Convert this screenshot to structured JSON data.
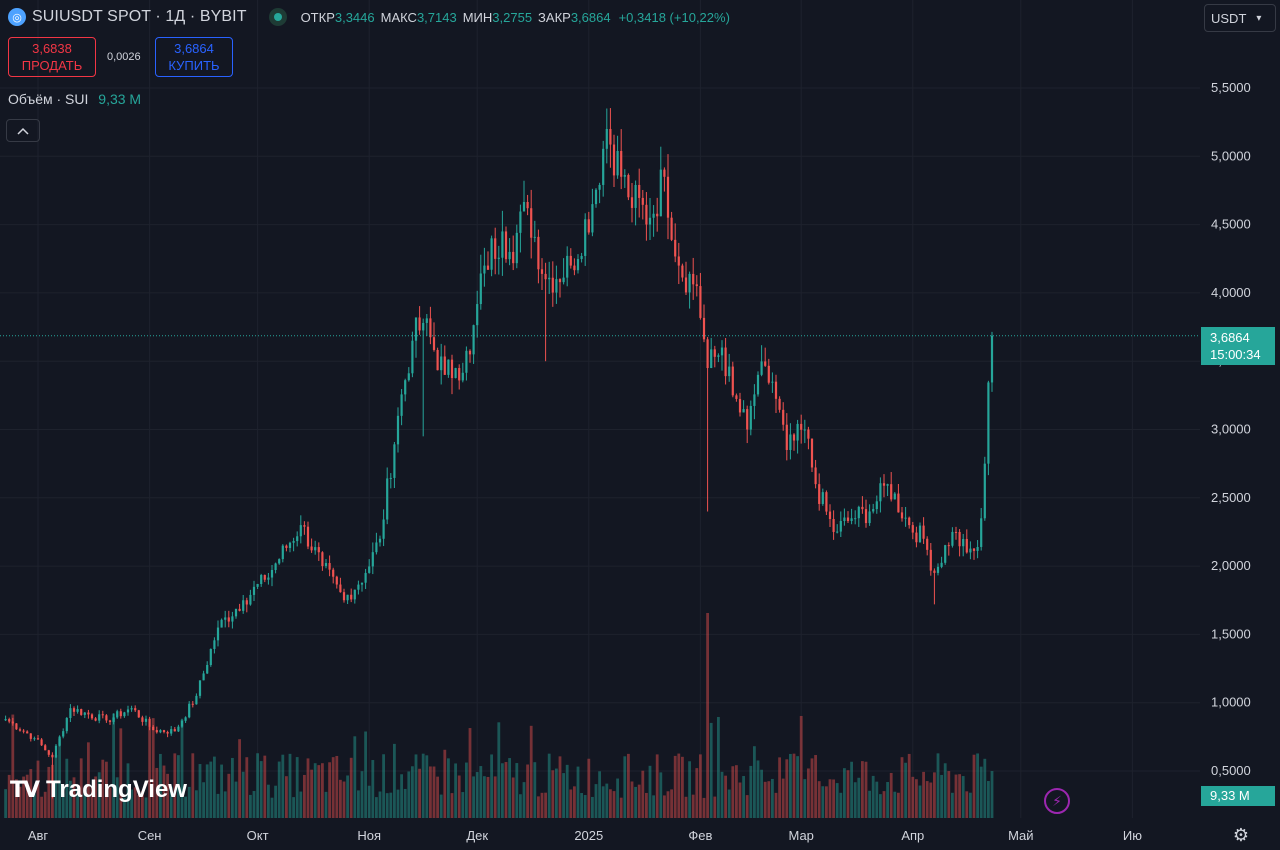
{
  "header": {
    "symbol_title": "SUIUSDT SPOT · 1Д · BYBIT",
    "ohlc": {
      "open_label": "ОТКР",
      "open": "3,3446",
      "high_label": "МАКС",
      "high": "3,7143",
      "low_label": "МИН",
      "low": "3,2755",
      "close_label": "ЗАКР",
      "close": "3,6864",
      "change": "+0,3418 (+10,22%)"
    },
    "sell": {
      "price": "3,6838",
      "label": "ПРОДАТЬ"
    },
    "spread": "0,0026",
    "buy": {
      "price": "3,6864",
      "label": "КУПИТЬ"
    },
    "volume_legend": {
      "label": "Объём · SUI",
      "value": "9,33 M"
    },
    "collapse_icon": "chevron-up-icon"
  },
  "currency_select": {
    "value": "USDT",
    "icon": "chevron-down-icon"
  },
  "price_label": {
    "price": "3,6864",
    "countdown": "15:00:34"
  },
  "volume_label": "9,33 M",
  "logo_text": "TradingView",
  "colors": {
    "background": "#131722",
    "up": "#26a69a",
    "down": "#ef5350",
    "grid": "#1e222d",
    "text": "#d1d4dc",
    "price_line": "#26a69a"
  },
  "chart_data": {
    "type": "candlestick",
    "title": "SUIUSDT SPOT · 1Д · BYBIT",
    "ylim": [
      0.3,
      5.7
    ],
    "y_ticks": [
      "5,5000",
      "5,0000",
      "4,5000",
      "4,0000",
      "3,5000",
      "3,0000",
      "2,5000",
      "2,0000",
      "1,5000",
      "1,0000",
      "0,5000"
    ],
    "y_tick_values": [
      5.5,
      5.0,
      4.5,
      4.0,
      3.5,
      3.0,
      2.5,
      2.0,
      1.5,
      1.0,
      0.5
    ],
    "x_ticks": [
      "Авг",
      "Сен",
      "Окт",
      "Ноя",
      "Дек",
      "2025",
      "Фев",
      "Мар",
      "Апр",
      "Май",
      "Ию"
    ],
    "x_tick_dates": [
      "2024-08-01",
      "2024-09-01",
      "2024-10-01",
      "2024-11-01",
      "2024-12-01",
      "2025-01-01",
      "2025-02-01",
      "2025-03-01",
      "2025-04-01",
      "2025-05-01",
      "2025-06-01"
    ],
    "series_dates": [
      "2024-07-23",
      "2025-04-23"
    ],
    "key_points": [
      {
        "date": "2024-07-23",
        "close": 0.88
      },
      {
        "date": "2024-07-31",
        "close": 0.74
      },
      {
        "date": "2024-08-05",
        "close": 0.6
      },
      {
        "date": "2024-08-10",
        "close": 0.96
      },
      {
        "date": "2024-08-20",
        "close": 0.87
      },
      {
        "date": "2024-08-27",
        "close": 0.96
      },
      {
        "date": "2024-09-02",
        "close": 0.8
      },
      {
        "date": "2024-09-08",
        "close": 0.79
      },
      {
        "date": "2024-09-14",
        "close": 1.05
      },
      {
        "date": "2024-09-20",
        "close": 1.55
      },
      {
        "date": "2024-09-27",
        "close": 1.75
      },
      {
        "date": "2024-10-03",
        "close": 1.9
      },
      {
        "date": "2024-10-13",
        "close": 2.3
      },
      {
        "date": "2024-10-19",
        "close": 2.0
      },
      {
        "date": "2024-10-25",
        "close": 1.75
      },
      {
        "date": "2024-10-31",
        "close": 1.95
      },
      {
        "date": "2024-11-04",
        "close": 2.2
      },
      {
        "date": "2024-11-09",
        "close": 3.1
      },
      {
        "date": "2024-11-13",
        "close": 3.65
      },
      {
        "date": "2024-11-16",
        "close": 3.78
      },
      {
        "date": "2024-11-22",
        "close": 3.4
      },
      {
        "date": "2024-11-25",
        "close": 3.45
      },
      {
        "date": "2024-11-29",
        "close": 3.55
      },
      {
        "date": "2024-12-03",
        "close": 4.2
      },
      {
        "date": "2024-12-08",
        "close": 4.45
      },
      {
        "date": "2024-12-10",
        "close": 4.3
      },
      {
        "date": "2024-12-15",
        "close": 4.62
      },
      {
        "date": "2024-12-20",
        "close": 4.1
      },
      {
        "date": "2024-12-27",
        "close": 4.2
      },
      {
        "date": "2025-01-02",
        "close": 4.65
      },
      {
        "date": "2025-01-06",
        "close": 5.2
      },
      {
        "date": "2025-01-12",
        "close": 4.7
      },
      {
        "date": "2025-01-18",
        "close": 4.55
      },
      {
        "date": "2025-01-22",
        "close": 4.85
      },
      {
        "date": "2025-01-26",
        "close": 4.2
      },
      {
        "date": "2025-01-31",
        "close": 4.05
      },
      {
        "date": "2025-02-03",
        "close": 3.45
      },
      {
        "date": "2025-02-07",
        "close": 3.6
      },
      {
        "date": "2025-02-10",
        "close": 3.25
      },
      {
        "date": "2025-02-14",
        "close": 3.0
      },
      {
        "date": "2025-02-17",
        "close": 3.4
      },
      {
        "date": "2025-02-21",
        "close": 3.35
      },
      {
        "date": "2025-02-25",
        "close": 2.85
      },
      {
        "date": "2025-03-02",
        "close": 3.0
      },
      {
        "date": "2025-03-05",
        "close": 2.6
      },
      {
        "date": "2025-03-10",
        "close": 2.25
      },
      {
        "date": "2025-03-15",
        "close": 2.35
      },
      {
        "date": "2025-03-20",
        "close": 2.4
      },
      {
        "date": "2025-03-25",
        "close": 2.6
      },
      {
        "date": "2025-03-31",
        "close": 2.3
      },
      {
        "date": "2025-04-04",
        "close": 2.2
      },
      {
        "date": "2025-04-07",
        "close": 1.95
      },
      {
        "date": "2025-04-12",
        "close": 2.25
      },
      {
        "date": "2025-04-16",
        "close": 2.1
      },
      {
        "date": "2025-04-19",
        "close": 2.14
      },
      {
        "date": "2025-04-20",
        "close": 2.35
      },
      {
        "date": "2025-04-21",
        "close": 2.75
      },
      {
        "date": "2025-04-22",
        "close": 3.3446
      },
      {
        "date": "2025-04-23",
        "close": 3.6864
      }
    ],
    "last_price": 3.6864,
    "last_open": 3.3446,
    "last_high": 3.7143,
    "last_low": 3.2755
  }
}
